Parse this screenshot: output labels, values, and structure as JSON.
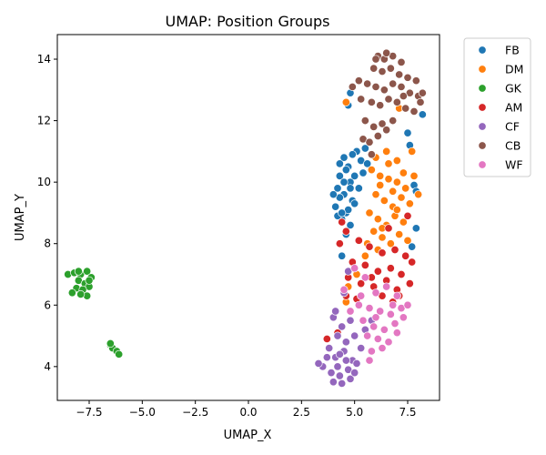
{
  "chart_data": {
    "type": "scatter",
    "title": "UMAP: Position Groups",
    "xlabel": "UMAP_X",
    "ylabel": "UMAP_Y",
    "xlim": [
      -9.0,
      9.0
    ],
    "ylim": [
      2.9,
      14.8
    ],
    "xticks": [
      -7.5,
      -5.0,
      -2.5,
      0.0,
      2.5,
      5.0,
      7.5
    ],
    "xtick_labels": [
      "−7.5",
      "−5.0",
      "−2.5",
      "0.0",
      "2.5",
      "5.0",
      "7.5"
    ],
    "yticks": [
      4,
      6,
      8,
      10,
      12,
      14
    ],
    "ytick_labels": [
      "4",
      "6",
      "8",
      "10",
      "12",
      "14"
    ],
    "grid": false,
    "legend_position": "outside-right",
    "series": [
      {
        "name": "FB",
        "color": "#1f77b4",
        "points": [
          [
            4.5,
            10.8
          ],
          [
            4.7,
            10.5
          ],
          [
            4.3,
            10.2
          ],
          [
            4.8,
            10.0
          ],
          [
            4.2,
            9.8
          ],
          [
            4.5,
            9.6
          ],
          [
            4.9,
            9.4
          ],
          [
            4.1,
            9.2
          ],
          [
            4.6,
            9.0
          ],
          [
            5.0,
            9.3
          ],
          [
            4.4,
            8.8
          ],
          [
            4.8,
            8.6
          ],
          [
            5.2,
            9.8
          ],
          [
            5.4,
            10.3
          ],
          [
            5.3,
            10.7
          ],
          [
            5.1,
            11.0
          ],
          [
            4.3,
            9.5
          ],
          [
            4.7,
            9.1
          ],
          [
            4.2,
            8.9
          ],
          [
            4.6,
            10.4
          ],
          [
            4.9,
            10.9
          ],
          [
            5.5,
            11.1
          ],
          [
            5.6,
            10.6
          ],
          [
            4.0,
            9.6
          ],
          [
            4.4,
            9.0
          ],
          [
            4.6,
            8.3
          ],
          [
            4.4,
            7.6
          ],
          [
            4.8,
            12.9
          ],
          [
            4.7,
            12.5
          ],
          [
            8.2,
            12.2
          ],
          [
            7.8,
            9.9
          ],
          [
            7.9,
            9.7
          ],
          [
            7.6,
            11.2
          ],
          [
            7.5,
            11.6
          ],
          [
            7.9,
            8.5
          ],
          [
            7.7,
            7.9
          ],
          [
            4.5,
            10.0
          ],
          [
            4.8,
            9.8
          ],
          [
            5.0,
            10.2
          ],
          [
            4.3,
            10.6
          ]
        ]
      },
      {
        "name": "DM",
        "color": "#ff7f0e",
        "points": [
          [
            5.8,
            10.4
          ],
          [
            6.2,
            10.2
          ],
          [
            6.6,
            10.6
          ],
          [
            7.0,
            10.0
          ],
          [
            7.4,
            9.8
          ],
          [
            6.0,
            9.6
          ],
          [
            6.4,
            9.4
          ],
          [
            6.8,
            9.2
          ],
          [
            7.2,
            9.5
          ],
          [
            7.6,
            9.3
          ],
          [
            5.7,
            9.0
          ],
          [
            6.1,
            8.8
          ],
          [
            6.5,
            8.6
          ],
          [
            6.9,
            8.9
          ],
          [
            7.3,
            8.7
          ],
          [
            5.9,
            8.4
          ],
          [
            6.3,
            8.2
          ],
          [
            6.7,
            8.0
          ],
          [
            7.1,
            8.3
          ],
          [
            7.5,
            8.1
          ],
          [
            6.0,
            10.8
          ],
          [
            6.5,
            11.0
          ],
          [
            7.0,
            10.7
          ],
          [
            7.8,
            10.2
          ],
          [
            8.0,
            9.6
          ],
          [
            6.2,
            9.9
          ],
          [
            6.8,
            9.7
          ],
          [
            7.3,
            10.3
          ],
          [
            5.6,
            8.0
          ],
          [
            5.5,
            7.6
          ],
          [
            6.1,
            7.8
          ],
          [
            7.7,
            11.0
          ],
          [
            7.1,
            12.4
          ],
          [
            4.6,
            12.6
          ],
          [
            5.1,
            7.0
          ],
          [
            4.7,
            6.6
          ],
          [
            4.6,
            6.1
          ],
          [
            6.6,
            10.1
          ],
          [
            7.0,
            9.1
          ],
          [
            6.3,
            8.5
          ]
        ]
      },
      {
        "name": "GK",
        "color": "#2ca02c",
        "points": [
          [
            -8.5,
            7.0
          ],
          [
            -8.2,
            7.05
          ],
          [
            -7.9,
            7.0
          ],
          [
            -7.6,
            7.1
          ],
          [
            -7.4,
            6.9
          ],
          [
            -8.0,
            6.8
          ],
          [
            -7.7,
            6.7
          ],
          [
            -7.5,
            6.6
          ],
          [
            -8.1,
            6.55
          ],
          [
            -7.8,
            6.5
          ],
          [
            -7.6,
            6.3
          ],
          [
            -7.9,
            6.35
          ],
          [
            -8.3,
            6.4
          ],
          [
            -7.5,
            6.8
          ],
          [
            -8.0,
            7.1
          ],
          [
            -6.5,
            4.7
          ],
          [
            -6.4,
            4.6
          ],
          [
            -6.2,
            4.5
          ],
          [
            -6.1,
            4.4
          ],
          [
            -6.5,
            4.75
          ]
        ]
      },
      {
        "name": "AM",
        "color": "#d62728",
        "points": [
          [
            4.4,
            8.7
          ],
          [
            4.6,
            8.4
          ],
          [
            5.2,
            8.1
          ],
          [
            5.7,
            7.9
          ],
          [
            6.3,
            7.7
          ],
          [
            6.9,
            7.8
          ],
          [
            7.4,
            7.6
          ],
          [
            4.9,
            7.4
          ],
          [
            5.5,
            7.3
          ],
          [
            6.1,
            7.1
          ],
          [
            6.7,
            7.2
          ],
          [
            7.2,
            7.0
          ],
          [
            4.7,
            6.9
          ],
          [
            5.3,
            6.7
          ],
          [
            5.9,
            6.6
          ],
          [
            6.5,
            6.8
          ],
          [
            7.0,
            6.5
          ],
          [
            4.6,
            6.3
          ],
          [
            5.1,
            6.2
          ],
          [
            6.3,
            6.3
          ],
          [
            6.8,
            6.1
          ],
          [
            7.1,
            6.3
          ],
          [
            4.2,
            5.1
          ],
          [
            3.7,
            4.9
          ],
          [
            4.3,
            8.0
          ],
          [
            7.7,
            7.4
          ],
          [
            7.6,
            6.7
          ],
          [
            7.5,
            8.9
          ],
          [
            6.6,
            8.5
          ],
          [
            5.8,
            6.9
          ]
        ]
      },
      {
        "name": "CF",
        "color": "#9467bd",
        "points": [
          [
            4.0,
            5.6
          ],
          [
            4.4,
            5.3
          ],
          [
            4.8,
            5.5
          ],
          [
            4.2,
            5.0
          ],
          [
            4.6,
            4.8
          ],
          [
            5.0,
            5.0
          ],
          [
            3.8,
            4.6
          ],
          [
            4.1,
            4.3
          ],
          [
            4.5,
            4.5
          ],
          [
            4.9,
            4.2
          ],
          [
            3.5,
            4.0
          ],
          [
            3.9,
            3.8
          ],
          [
            4.3,
            3.7
          ],
          [
            4.7,
            3.9
          ],
          [
            5.1,
            4.1
          ],
          [
            4.0,
            3.5
          ],
          [
            4.4,
            3.45
          ],
          [
            3.3,
            4.1
          ],
          [
            3.7,
            4.3
          ],
          [
            4.2,
            4.0
          ],
          [
            4.6,
            4.2
          ],
          [
            5.3,
            4.6
          ],
          [
            5.5,
            5.2
          ],
          [
            5.8,
            5.5
          ],
          [
            4.1,
            5.8
          ],
          [
            4.5,
            6.4
          ],
          [
            4.7,
            7.1
          ],
          [
            4.8,
            3.6
          ],
          [
            5.0,
            3.8
          ],
          [
            4.3,
            4.4
          ]
        ]
      },
      {
        "name": "CB",
        "color": "#8c564b",
        "points": [
          [
            6.1,
            14.1
          ],
          [
            6.4,
            14.0
          ],
          [
            6.8,
            14.1
          ],
          [
            7.2,
            13.9
          ],
          [
            5.9,
            13.7
          ],
          [
            6.3,
            13.6
          ],
          [
            6.7,
            13.7
          ],
          [
            7.1,
            13.5
          ],
          [
            7.5,
            13.4
          ],
          [
            5.2,
            13.3
          ],
          [
            5.6,
            13.2
          ],
          [
            6.0,
            13.1
          ],
          [
            6.4,
            13.0
          ],
          [
            6.8,
            13.2
          ],
          [
            7.2,
            13.1
          ],
          [
            7.6,
            12.9
          ],
          [
            8.0,
            12.8
          ],
          [
            5.8,
            12.6
          ],
          [
            6.2,
            12.5
          ],
          [
            6.6,
            12.7
          ],
          [
            7.0,
            12.6
          ],
          [
            7.4,
            12.4
          ],
          [
            7.8,
            12.3
          ],
          [
            8.1,
            12.6
          ],
          [
            5.5,
            12.0
          ],
          [
            5.9,
            11.8
          ],
          [
            6.3,
            11.9
          ],
          [
            6.8,
            12.0
          ],
          [
            5.4,
            11.4
          ],
          [
            5.7,
            11.3
          ],
          [
            6.1,
            11.5
          ],
          [
            6.5,
            11.7
          ],
          [
            4.9,
            13.1
          ],
          [
            5.3,
            12.7
          ],
          [
            6.5,
            14.2
          ],
          [
            8.2,
            12.9
          ],
          [
            7.9,
            13.3
          ],
          [
            5.8,
            10.9
          ],
          [
            6.0,
            14.0
          ],
          [
            7.3,
            12.8
          ]
        ]
      },
      {
        "name": "WF",
        "color": "#e377c2",
        "points": [
          [
            5.0,
            7.2
          ],
          [
            5.5,
            6.9
          ],
          [
            6.0,
            6.4
          ],
          [
            6.5,
            6.6
          ],
          [
            7.0,
            6.3
          ],
          [
            5.2,
            6.0
          ],
          [
            5.7,
            5.9
          ],
          [
            6.2,
            5.8
          ],
          [
            6.7,
            5.7
          ],
          [
            7.2,
            5.9
          ],
          [
            5.4,
            5.5
          ],
          [
            5.9,
            5.3
          ],
          [
            6.4,
            5.2
          ],
          [
            6.9,
            5.4
          ],
          [
            7.3,
            5.6
          ],
          [
            5.6,
            5.0
          ],
          [
            6.1,
            4.9
          ],
          [
            6.6,
            4.8
          ],
          [
            7.0,
            5.1
          ],
          [
            5.8,
            4.5
          ],
          [
            6.3,
            4.6
          ],
          [
            5.7,
            4.2
          ],
          [
            4.8,
            5.8
          ],
          [
            4.5,
            6.5
          ],
          [
            5.3,
            6.3
          ],
          [
            6.8,
            6.0
          ],
          [
            7.5,
            6.0
          ],
          [
            6.0,
            5.6
          ]
        ]
      }
    ]
  }
}
